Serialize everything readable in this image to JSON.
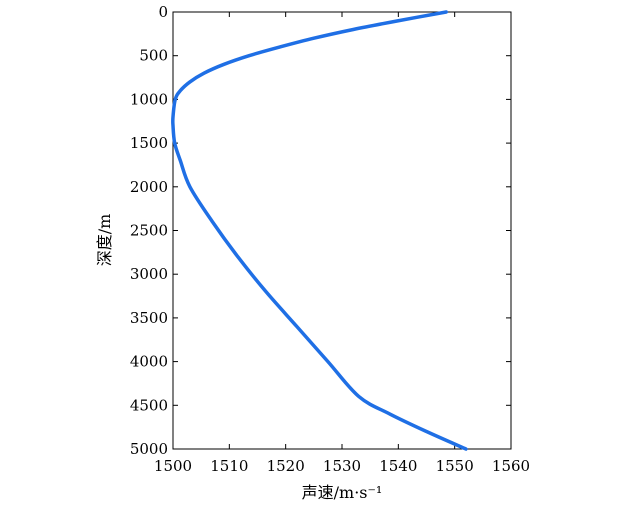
{
  "chart_data": {
    "type": "line",
    "title": "",
    "xlabel": "声速/m·s⁻¹",
    "ylabel": "深度/m",
    "xlim": [
      1500,
      1560
    ],
    "ylim": [
      0,
      5000
    ],
    "y_inverted": true,
    "grid": false,
    "x_ticks": [
      "1500",
      "1510",
      "1520",
      "1530",
      "1540",
      "1550",
      "1560"
    ],
    "y_ticks": [
      "0",
      "500",
      "1000",
      "1500",
      "2000",
      "2500",
      "3000",
      "3500",
      "4000",
      "4500",
      "5000"
    ],
    "series": [
      {
        "color": "#1f6fe5",
        "points": [
          {
            "x": 1548.5,
            "y": 0
          },
          {
            "x": 1540.0,
            "y": 100
          },
          {
            "x": 1532.0,
            "y": 200
          },
          {
            "x": 1525.0,
            "y": 300
          },
          {
            "x": 1519.0,
            "y": 400
          },
          {
            "x": 1513.5,
            "y": 500
          },
          {
            "x": 1509.0,
            "y": 600
          },
          {
            "x": 1505.5,
            "y": 700
          },
          {
            "x": 1503.0,
            "y": 800
          },
          {
            "x": 1501.3,
            "y": 900
          },
          {
            "x": 1500.4,
            "y": 1000
          },
          {
            "x": 1500.0,
            "y": 1200
          },
          {
            "x": 1500.0,
            "y": 1300
          },
          {
            "x": 1500.3,
            "y": 1500
          },
          {
            "x": 1501.3,
            "y": 1700
          },
          {
            "x": 1503.0,
            "y": 2000
          },
          {
            "x": 1507.0,
            "y": 2400
          },
          {
            "x": 1511.5,
            "y": 2800
          },
          {
            "x": 1516.5,
            "y": 3200
          },
          {
            "x": 1522.0,
            "y": 3600
          },
          {
            "x": 1527.5,
            "y": 4000
          },
          {
            "x": 1533.0,
            "y": 4400
          },
          {
            "x": 1538.5,
            "y": 4600
          },
          {
            "x": 1545.0,
            "y": 4800
          },
          {
            "x": 1552.0,
            "y": 5000
          }
        ]
      }
    ]
  }
}
